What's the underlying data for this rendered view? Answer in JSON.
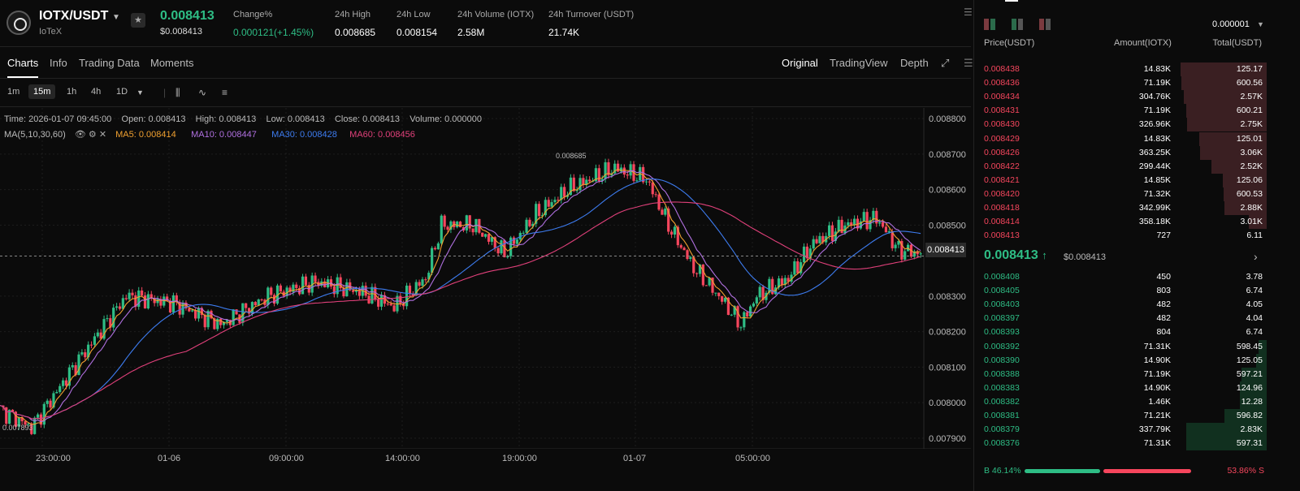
{
  "header": {
    "pair": "IOTX/USDT",
    "token_name": "IoTeX",
    "last_price": "0.008413",
    "last_price_usd": "$0.008413",
    "stats": [
      {
        "label": "Change%",
        "value": "0.000121(+1.45%)",
        "green": true
      },
      {
        "label": "24h High",
        "value": "0.008685"
      },
      {
        "label": "24h Low",
        "value": "0.008154"
      },
      {
        "label": "24h Volume (IOTX)",
        "value": "2.58M"
      },
      {
        "label": "24h Turnover (USDT)",
        "value": "21.74K"
      }
    ]
  },
  "tabs": [
    "Charts",
    "Info",
    "Trading Data",
    "Moments"
  ],
  "views": [
    "Original",
    "TradingView",
    "Depth"
  ],
  "intervals": [
    "1m",
    "15m",
    "1h",
    "4h",
    "1D"
  ],
  "chart_info": {
    "time": "Time: 2026-01-07 09:45:00",
    "open": "Open: 0.008413",
    "high": "High: 0.008413",
    "low": "Low: 0.008413",
    "close": "Close: 0.008413",
    "volume": "Volume: 0.000000",
    "ma_label": "MA(5,10,30,60)",
    "ma5": "MA5: 0.008414",
    "ma10": "MA10: 0.008447",
    "ma30": "MA30: 0.008428",
    "ma60": "MA60: 0.008456"
  },
  "chart_data": {
    "type": "candlestick",
    "y_ticks": [
      "0.008800",
      "0.008700",
      "0.008600",
      "0.008500",
      "0.008413",
      "0.008300",
      "0.008200",
      "0.008100",
      "0.008000",
      "0.007900"
    ],
    "ylim": [
      0.00787,
      0.00883
    ],
    "x_ticks": [
      "23:00:00",
      "01-06",
      "09:00:00",
      "14:00:00",
      "19:00:00",
      "01-07",
      "05:00:00"
    ],
    "high_label": "0.008685",
    "low_label": "0.007893",
    "current_price": "0.008413",
    "colors": {
      "up": "#2ebd85",
      "down": "#f6465d",
      "ma5": "#f0a030",
      "ma10": "#b070e0",
      "ma30": "#3d7cf0",
      "ma60": "#e0407a"
    }
  },
  "orderbook": {
    "precision": "0.000001",
    "columns": [
      "Price(USDT)",
      "Amount(IOTX)",
      "Total(USDT)"
    ],
    "asks": [
      {
        "price": "0.008438",
        "amount": "14.83K",
        "total": "125.17",
        "depth": 0.92
      },
      {
        "price": "0.008436",
        "amount": "71.19K",
        "total": "600.56",
        "depth": 0.91
      },
      {
        "price": "0.008434",
        "amount": "304.76K",
        "total": "2.57K",
        "depth": 0.89
      },
      {
        "price": "0.008431",
        "amount": "71.19K",
        "total": "600.21",
        "depth": 0.86
      },
      {
        "price": "0.008430",
        "amount": "326.96K",
        "total": "2.75K",
        "depth": 0.85
      },
      {
        "price": "0.008429",
        "amount": "14.83K",
        "total": "125.01",
        "depth": 0.72
      },
      {
        "price": "0.008426",
        "amount": "363.25K",
        "total": "3.06K",
        "depth": 0.71
      },
      {
        "price": "0.008422",
        "amount": "299.44K",
        "total": "2.52K",
        "depth": 0.59
      },
      {
        "price": "0.008421",
        "amount": "14.85K",
        "total": "125.06",
        "depth": 0.47
      },
      {
        "price": "0.008420",
        "amount": "71.32K",
        "total": "600.53",
        "depth": 0.46
      },
      {
        "price": "0.008418",
        "amount": "342.99K",
        "total": "2.88K",
        "depth": 0.45
      },
      {
        "price": "0.008414",
        "amount": "358.18K",
        "total": "3.01K",
        "depth": 0.19
      },
      {
        "price": "0.008413",
        "amount": "727",
        "total": "6.11",
        "depth": 0.0
      }
    ],
    "mid_price": "0.008413",
    "mid_arrow": "↑",
    "mid_usd": "$0.008413",
    "bids": [
      {
        "price": "0.008408",
        "amount": "450",
        "total": "3.78",
        "depth": 0.0
      },
      {
        "price": "0.008405",
        "amount": "803",
        "total": "6.74",
        "depth": 0.0
      },
      {
        "price": "0.008403",
        "amount": "482",
        "total": "4.05",
        "depth": 0.0
      },
      {
        "price": "0.008397",
        "amount": "482",
        "total": "4.04",
        "depth": 0.0
      },
      {
        "price": "0.008393",
        "amount": "804",
        "total": "6.74",
        "depth": 0.0
      },
      {
        "price": "0.008392",
        "amount": "71.31K",
        "total": "598.45",
        "depth": 0.09
      },
      {
        "price": "0.008390",
        "amount": "14.90K",
        "total": "125.05",
        "depth": 0.11
      },
      {
        "price": "0.008388",
        "amount": "71.19K",
        "total": "597.21",
        "depth": 0.27
      },
      {
        "price": "0.008383",
        "amount": "14.90K",
        "total": "124.96",
        "depth": 0.29
      },
      {
        "price": "0.008382",
        "amount": "1.46K",
        "total": "12.28",
        "depth": 0.29
      },
      {
        "price": "0.008381",
        "amount": "71.21K",
        "total": "596.82",
        "depth": 0.45
      },
      {
        "price": "0.008379",
        "amount": "337.79K",
        "total": "2.83K",
        "depth": 0.86
      },
      {
        "price": "0.008376",
        "amount": "71.31K",
        "total": "597.31",
        "depth": 0.86
      }
    ],
    "buy_ratio": "B 46.14%",
    "sell_ratio": "53.86% S",
    "buy_pct": 46.14
  }
}
